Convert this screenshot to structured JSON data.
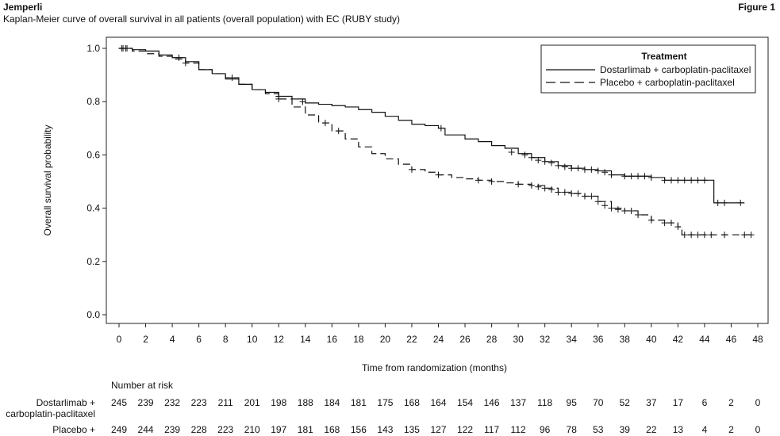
{
  "header": {
    "brand": "Jemperli",
    "subtitle": "Kaplan-Meier curve of overall survival in all patients (overall population) with EC (RUBY study)",
    "figure_label": "Figure 1"
  },
  "chart_data": {
    "type": "line",
    "ylabel": "Overall survival probability",
    "xlabel": "Time from randomization (months)",
    "xlim": [
      0,
      48
    ],
    "ylim": [
      0,
      1.0
    ],
    "x_ticks": [
      0,
      2,
      4,
      6,
      8,
      10,
      12,
      14,
      16,
      18,
      20,
      22,
      24,
      26,
      28,
      30,
      32,
      34,
      36,
      38,
      40,
      42,
      44,
      46,
      48
    ],
    "y_ticks": [
      0.0,
      0.2,
      0.4,
      0.6,
      0.8,
      1.0
    ],
    "y_tick_labels": [
      "0.0",
      "0.2",
      "0.4",
      "0.6",
      "0.8",
      "1.0"
    ],
    "grid": false,
    "legend": {
      "title": "Treatment",
      "placement": "top-right"
    },
    "series": [
      {
        "name": "Dostarlimab + carboplatin-paclitaxel",
        "style": "solid",
        "color": "#111111",
        "steps": [
          [
            0,
            1.0
          ],
          [
            1,
            0.995
          ],
          [
            2,
            0.99
          ],
          [
            3,
            0.975
          ],
          [
            4,
            0.965
          ],
          [
            5,
            0.95
          ],
          [
            6,
            0.92
          ],
          [
            7,
            0.905
          ],
          [
            8,
            0.885
          ],
          [
            9,
            0.865
          ],
          [
            10,
            0.845
          ],
          [
            11,
            0.835
          ],
          [
            12,
            0.82
          ],
          [
            13,
            0.81
          ],
          [
            14,
            0.795
          ],
          [
            15,
            0.79
          ],
          [
            16,
            0.785
          ],
          [
            17,
            0.78
          ],
          [
            18,
            0.77
          ],
          [
            19,
            0.76
          ],
          [
            20,
            0.745
          ],
          [
            21,
            0.73
          ],
          [
            22,
            0.715
          ],
          [
            23,
            0.71
          ],
          [
            24,
            0.7
          ],
          [
            24.5,
            0.675
          ],
          [
            26,
            0.66
          ],
          [
            27,
            0.65
          ],
          [
            28,
            0.635
          ],
          [
            29,
            0.625
          ],
          [
            30,
            0.605
          ],
          [
            31,
            0.59
          ],
          [
            32,
            0.575
          ],
          [
            33,
            0.56
          ],
          [
            34,
            0.55
          ],
          [
            35,
            0.545
          ],
          [
            36,
            0.54
          ],
          [
            37,
            0.525
          ],
          [
            38,
            0.52
          ],
          [
            40,
            0.515
          ],
          [
            41,
            0.505
          ],
          [
            44.7,
            0.505
          ],
          [
            44.7,
            0.42
          ],
          [
            47,
            0.42
          ]
        ],
        "censored": [
          [
            0.2,
            1.0
          ],
          [
            0.5,
            1.0
          ],
          [
            4.5,
            0.965
          ],
          [
            12,
            0.82
          ],
          [
            13.8,
            0.8
          ],
          [
            24.2,
            0.7
          ],
          [
            29.5,
            0.61
          ],
          [
            30.5,
            0.6
          ],
          [
            31,
            0.59
          ],
          [
            31.5,
            0.58
          ],
          [
            32,
            0.575
          ],
          [
            32.5,
            0.57
          ],
          [
            33,
            0.56
          ],
          [
            33.5,
            0.555
          ],
          [
            34,
            0.55
          ],
          [
            34.5,
            0.55
          ],
          [
            35,
            0.545
          ],
          [
            35.5,
            0.545
          ],
          [
            36,
            0.54
          ],
          [
            36.5,
            0.535
          ],
          [
            37,
            0.525
          ],
          [
            38,
            0.52
          ],
          [
            38.5,
            0.52
          ],
          [
            39,
            0.52
          ],
          [
            39.5,
            0.52
          ],
          [
            40,
            0.515
          ],
          [
            41,
            0.505
          ],
          [
            41.5,
            0.505
          ],
          [
            42,
            0.505
          ],
          [
            42.5,
            0.505
          ],
          [
            43,
            0.505
          ],
          [
            43.5,
            0.505
          ],
          [
            44,
            0.505
          ],
          [
            45,
            0.42
          ],
          [
            45.5,
            0.42
          ],
          [
            46.7,
            0.42
          ]
        ],
        "at_risk_label": "Dostarlimab +\ncarboplatin-paclitaxel",
        "at_risk": [
          245,
          239,
          232,
          223,
          211,
          201,
          198,
          188,
          184,
          181,
          175,
          168,
          164,
          154,
          146,
          137,
          118,
          95,
          70,
          52,
          37,
          17,
          6,
          2,
          0
        ]
      },
      {
        "name": "Placebo + carboplatin-paclitaxel",
        "style": "dashed",
        "color": "#111111",
        "steps": [
          [
            0,
            1.0
          ],
          [
            1,
            0.99
          ],
          [
            2,
            0.98
          ],
          [
            3,
            0.97
          ],
          [
            4,
            0.96
          ],
          [
            5,
            0.945
          ],
          [
            6,
            0.92
          ],
          [
            7,
            0.905
          ],
          [
            8,
            0.89
          ],
          [
            9,
            0.865
          ],
          [
            10,
            0.845
          ],
          [
            11,
            0.83
          ],
          [
            12,
            0.81
          ],
          [
            13,
            0.78
          ],
          [
            14,
            0.75
          ],
          [
            15,
            0.72
          ],
          [
            16,
            0.69
          ],
          [
            17,
            0.66
          ],
          [
            18,
            0.63
          ],
          [
            19,
            0.605
          ],
          [
            20,
            0.585
          ],
          [
            21,
            0.565
          ],
          [
            22,
            0.545
          ],
          [
            23,
            0.535
          ],
          [
            24,
            0.525
          ],
          [
            25,
            0.515
          ],
          [
            26,
            0.51
          ],
          [
            27,
            0.505
          ],
          [
            28,
            0.5
          ],
          [
            29,
            0.495
          ],
          [
            30,
            0.49
          ],
          [
            31,
            0.485
          ],
          [
            32,
            0.475
          ],
          [
            33,
            0.46
          ],
          [
            34,
            0.455
          ],
          [
            35,
            0.445
          ],
          [
            36,
            0.425
          ],
          [
            37,
            0.4
          ],
          [
            38,
            0.39
          ],
          [
            39,
            0.375
          ],
          [
            40,
            0.355
          ],
          [
            41,
            0.345
          ],
          [
            42,
            0.33
          ],
          [
            42.3,
            0.3
          ],
          [
            47.5,
            0.3
          ]
        ],
        "censored": [
          [
            0.3,
            1.0
          ],
          [
            0.6,
            1.0
          ],
          [
            5,
            0.945
          ],
          [
            8.5,
            0.89
          ],
          [
            12,
            0.81
          ],
          [
            15.5,
            0.72
          ],
          [
            16.5,
            0.69
          ],
          [
            22,
            0.545
          ],
          [
            24,
            0.525
          ],
          [
            27,
            0.505
          ],
          [
            28,
            0.5
          ],
          [
            30,
            0.49
          ],
          [
            31,
            0.485
          ],
          [
            31.5,
            0.48
          ],
          [
            32,
            0.475
          ],
          [
            32.5,
            0.47
          ],
          [
            33,
            0.46
          ],
          [
            33.5,
            0.46
          ],
          [
            34,
            0.455
          ],
          [
            34.5,
            0.455
          ],
          [
            35,
            0.445
          ],
          [
            35.5,
            0.445
          ],
          [
            36,
            0.425
          ],
          [
            36.5,
            0.41
          ],
          [
            37,
            0.4
          ],
          [
            37.5,
            0.395
          ],
          [
            38,
            0.39
          ],
          [
            38.5,
            0.39
          ],
          [
            39,
            0.375
          ],
          [
            40,
            0.355
          ],
          [
            41,
            0.345
          ],
          [
            41.5,
            0.345
          ],
          [
            42,
            0.33
          ],
          [
            42.5,
            0.3
          ],
          [
            43,
            0.3
          ],
          [
            43.5,
            0.3
          ],
          [
            44,
            0.3
          ],
          [
            44.5,
            0.3
          ],
          [
            45.5,
            0.3
          ],
          [
            47,
            0.3
          ],
          [
            47.5,
            0.3
          ]
        ],
        "at_risk_label": "Placebo +",
        "at_risk": [
          249,
          244,
          239,
          228,
          223,
          210,
          197,
          181,
          168,
          156,
          143,
          135,
          127,
          122,
          117,
          112,
          96,
          78,
          53,
          39,
          22,
          13,
          4,
          2,
          0
        ]
      }
    ],
    "at_risk_title": "Number at risk"
  }
}
